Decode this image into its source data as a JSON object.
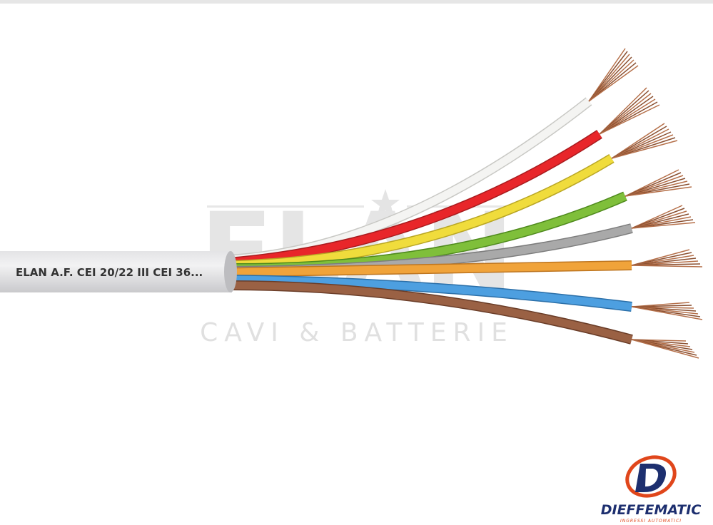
{
  "cable_print": "ELAN A.F. CEI 20/22 III CEI 36...",
  "watermark": {
    "brand": "ELAN",
    "tagline": "CAVI & BATTERIE"
  },
  "logo": {
    "name": "DIEFFEMATIC",
    "tagline": "INGRESSI AUTOMATICI"
  }
}
